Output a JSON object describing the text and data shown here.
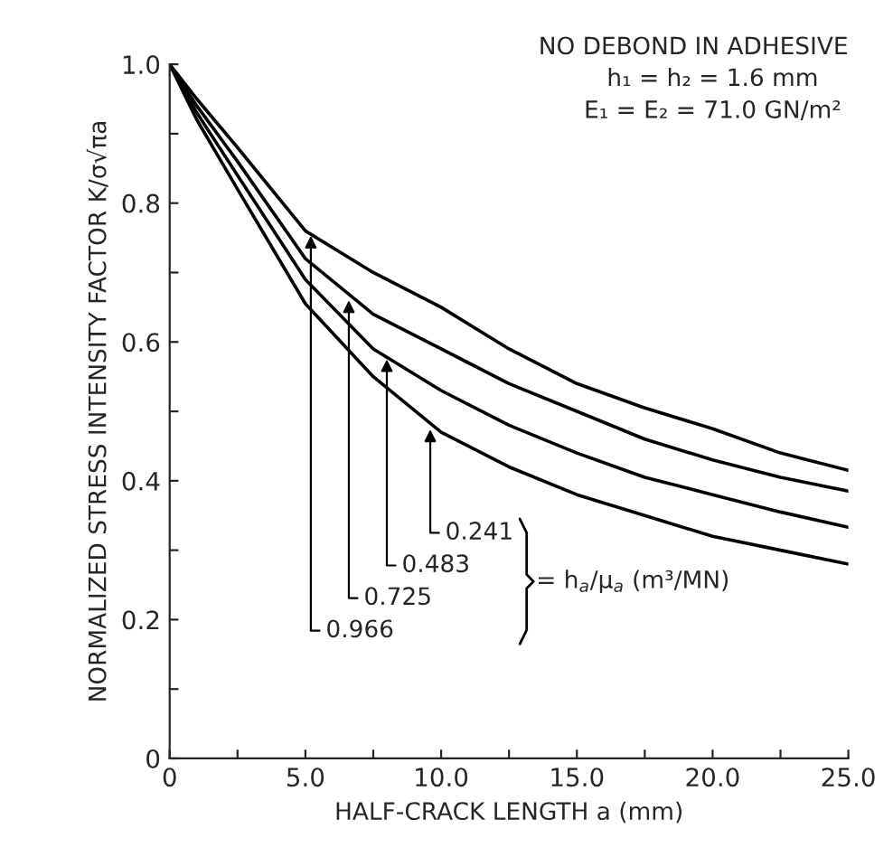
{
  "chart_data": {
    "type": "line",
    "title": "NO DEBOND IN ADHESIVE",
    "subtitle": "h₁ = h₂ = 1.6 mm\nE₁ = E₂ = 71.0 GN/m²",
    "xlabel": "HALF-CRACK LENGTH a (mm)",
    "ylabel": "NORMALIZED STRESS INTENSITY FACTOR K/σ√πa",
    "x": [
      0,
      1,
      2.5,
      5,
      7.5,
      10,
      12.5,
      15,
      17.5,
      20,
      22.5,
      25
    ],
    "series": [
      {
        "color": "#000000",
        "values": [
          1.0,
          0.95,
          0.88,
          0.76,
          0.7,
          0.65,
          0.59,
          0.54,
          0.505,
          0.475,
          0.44,
          0.415
        ]
      },
      {
        "color": "#000000",
        "values": [
          1.0,
          0.94,
          0.86,
          0.72,
          0.64,
          0.59,
          0.54,
          0.5,
          0.46,
          0.43,
          0.405,
          0.385
        ]
      },
      {
        "color": "#000000",
        "values": [
          1.0,
          0.93,
          0.84,
          0.69,
          0.59,
          0.53,
          0.48,
          0.44,
          0.405,
          0.38,
          0.355,
          0.333
        ]
      },
      {
        "color": "#000000",
        "values": [
          1.0,
          0.92,
          0.82,
          0.655,
          0.55,
          0.47,
          0.42,
          0.38,
          0.35,
          0.32,
          0.3,
          0.28
        ]
      }
    ],
    "annotations": [
      {
        "text": "0.241",
        "x": 9.6,
        "y": 0.474
      },
      {
        "text": "0.483",
        "x": 8.0,
        "y": 0.575
      },
      {
        "text": "0.725",
        "x": 6.6,
        "y": 0.66
      },
      {
        "text": "0.966",
        "x": 5.2,
        "y": 0.753
      },
      "= h$_{a}$/μ$_{a}$ (m³/MN)"
    ],
    "xlim": [
      0,
      25
    ],
    "ylim": [
      0,
      1.0
    ],
    "xticks": [
      {
        "value": 0,
        "label": "0"
      },
      {
        "value": 2.5,
        "label": null
      },
      {
        "value": 5,
        "label": "5.0"
      },
      {
        "value": 7.5,
        "label": null
      },
      {
        "value": 10,
        "label": "10.0"
      },
      {
        "value": 12.5,
        "label": null
      },
      {
        "value": 15,
        "label": "15.0"
      },
      {
        "value": 17.5,
        "label": null
      },
      {
        "value": 20,
        "label": "20.0"
      },
      {
        "value": 22.5,
        "label": null
      },
      {
        "value": 25,
        "label": "25.0"
      }
    ],
    "yticks": [
      {
        "value": 0,
        "label": "0"
      },
      {
        "value": 0.1,
        "label": null
      },
      {
        "value": 0.2,
        "label": "0.2"
      },
      {
        "value": 0.3,
        "label": null
      },
      {
        "value": 0.4,
        "label": "0.4"
      },
      {
        "value": 0.5,
        "label": null
      },
      {
        "value": 0.6,
        "label": "0.6"
      },
      {
        "value": 0.7,
        "label": null
      },
      {
        "value": 0.8,
        "label": "0.8"
      },
      {
        "value": 0.9,
        "label": null
      },
      {
        "value": 1.0,
        "label": "1.0"
      }
    ],
    "grid": false,
    "legend": false,
    "marker": "none",
    "line_style": "solid"
  }
}
